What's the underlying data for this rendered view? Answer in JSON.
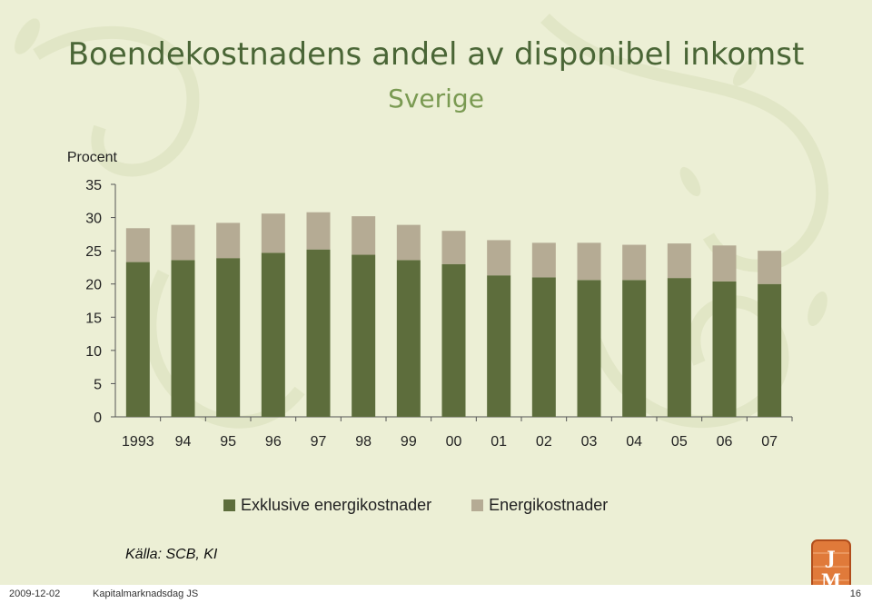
{
  "slide": {
    "title": "Boendekostnadens andel av disponibel inkomst",
    "subtitle": "Sverige",
    "source": "Källa: SCB, KI",
    "footer_date": "2009-12-02",
    "footer_name": "Kapitalmarknadsdag JS",
    "footer_page": "16",
    "logo_text": "JM"
  },
  "colors": {
    "exkl": "#5d6d3c",
    "energi": "#b5ab94",
    "title": "#4a6636",
    "subtitle": "#7a9a52"
  },
  "chart_data": {
    "type": "bar",
    "stacked": true,
    "ylabel": "Procent",
    "ylim": [
      0,
      35
    ],
    "yticks": [
      0,
      5,
      10,
      15,
      20,
      25,
      30,
      35
    ],
    "categories": [
      "1993",
      "94",
      "95",
      "96",
      "97",
      "98",
      "99",
      "00",
      "01",
      "02",
      "03",
      "04",
      "05",
      "06",
      "07"
    ],
    "series": [
      {
        "name": "Exklusive energikostnader",
        "values": [
          23.3,
          23.6,
          23.9,
          24.7,
          25.2,
          24.4,
          23.6,
          23.0,
          21.3,
          21.0,
          20.6,
          20.6,
          20.9,
          20.4,
          20.0
        ]
      },
      {
        "name": "Energikostnader",
        "values": [
          5.1,
          5.3,
          5.3,
          5.9,
          5.6,
          5.8,
          5.3,
          5.0,
          5.3,
          5.2,
          5.6,
          5.3,
          5.2,
          5.4,
          5.0
        ]
      }
    ],
    "legend_position": "bottom",
    "grid": false
  }
}
